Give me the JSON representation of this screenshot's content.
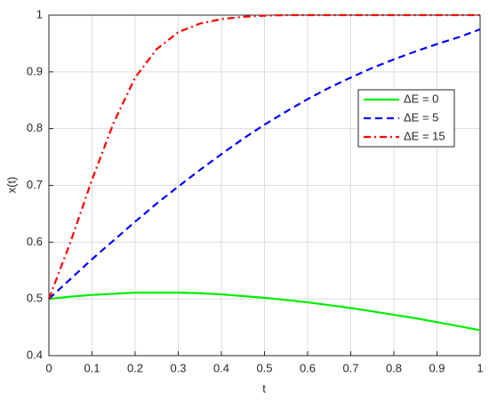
{
  "chart_data": {
    "type": "line",
    "xlabel": "t",
    "ylabel": "x(t)",
    "x": [
      0,
      0.05,
      0.1,
      0.15,
      0.2,
      0.25,
      0.3,
      0.35,
      0.4,
      0.45,
      0.5,
      0.55,
      0.6,
      0.65,
      0.7,
      0.75,
      0.8,
      0.85,
      0.9,
      0.95,
      1
    ],
    "series": [
      {
        "name": "ΔE = 0",
        "color": "#00ee00",
        "line_style": "solid",
        "values": [
          0.5,
          0.504,
          0.507,
          0.509,
          0.511,
          0.511,
          0.511,
          0.51,
          0.508,
          0.505,
          0.502,
          0.498,
          0.494,
          0.489,
          0.484,
          0.478,
          0.472,
          0.466,
          0.459,
          0.452,
          0.445
        ]
      },
      {
        "name": "ΔE = 5",
        "color": "#0000ff",
        "line_style": "dashed",
        "values": [
          0.5,
          0.535,
          0.57,
          0.603,
          0.636,
          0.668,
          0.698,
          0.727,
          0.755,
          0.782,
          0.807,
          0.83,
          0.852,
          0.872,
          0.89,
          0.907,
          0.922,
          0.936,
          0.949,
          0.961,
          0.975
        ]
      },
      {
        "name": "ΔE = 15",
        "color": "#ff0000",
        "line_style": "dashdot",
        "values": [
          0.5,
          0.6,
          0.71,
          0.81,
          0.89,
          0.94,
          0.97,
          0.985,
          0.993,
          0.997,
          0.999,
          1,
          1,
          1,
          1,
          1,
          1,
          1,
          1,
          1,
          1
        ]
      }
    ],
    "xlim": [
      0,
      1
    ],
    "xticks": [
      0,
      0.1,
      0.2,
      0.3,
      0.4,
      0.5,
      0.6,
      0.7,
      0.8,
      0.9,
      1
    ],
    "ylim": [
      0.4,
      1
    ],
    "yticks": [
      0.4,
      0.5,
      0.6,
      0.7,
      0.8,
      0.9,
      1
    ],
    "grid": true,
    "legend": "east"
  }
}
